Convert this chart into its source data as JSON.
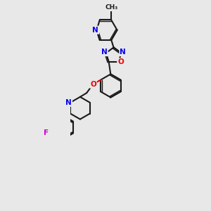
{
  "background_color": "#e8e8e8",
  "bond_color": "#1a1a1a",
  "N_color": "#0000ee",
  "O_color": "#ee0000",
  "F_color": "#cc00cc",
  "fig_width": 3.0,
  "fig_height": 3.0,
  "dpi": 100,
  "xlim": [
    0.5,
    3.5
  ],
  "ylim": [
    -0.5,
    8.5
  ]
}
